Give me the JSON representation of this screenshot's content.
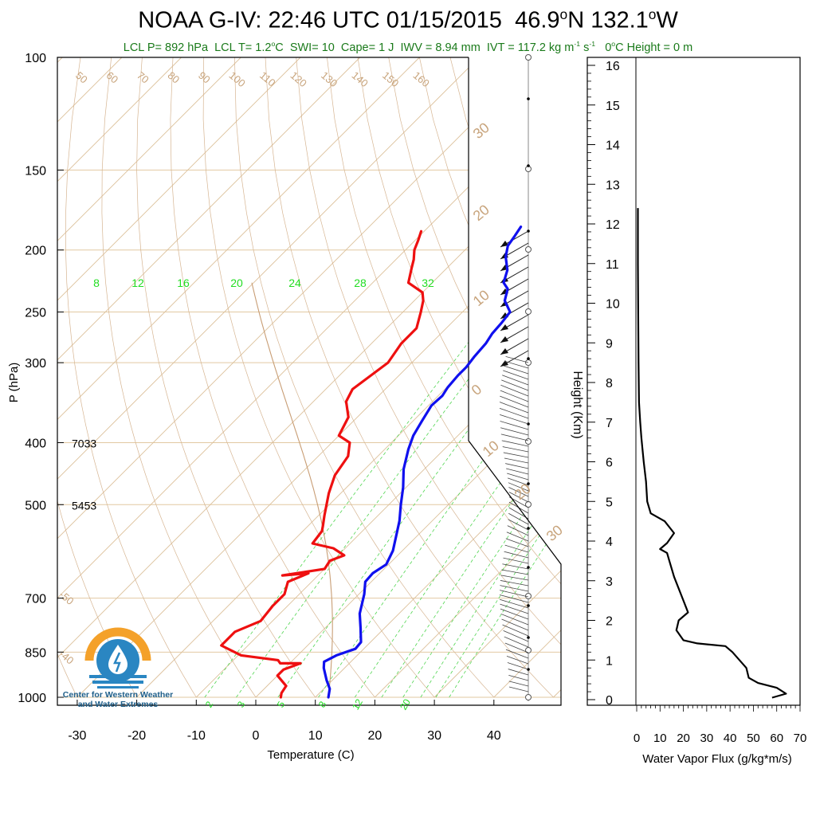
{
  "header": {
    "station": "NOAA G-IV",
    "time": "22:46 UTC 01/15/2015",
    "lat": "46.9",
    "lon": "132.1",
    "indices": {
      "lcl_p": "LCL P= 892 hPa",
      "lcl_t_prefix": "LCL T= 1.2",
      "swi": "SWI= 10",
      "cape": "Cape= 1 J",
      "iwv": "IWV = 8.94 mm",
      "ivt_prefix": "IVT = 117.2 kg m",
      "zero_height": "C Height = 0 m"
    }
  },
  "logo": {
    "line1": "Center for Western Weather",
    "line2": "and Water Extremes"
  },
  "chart_data": [
    {
      "type": "line",
      "name": "skew-t",
      "xlabel": "Temperature (C)",
      "ylabel": "P (hPa)",
      "xlim": [
        -34,
        52
      ],
      "ylim": [
        1000,
        100
      ],
      "yscale": "log",
      "x_ticks": [
        -30,
        -20,
        -10,
        0,
        10,
        20,
        30,
        40
      ],
      "y_ticks": [
        100,
        150,
        200,
        250,
        300,
        400,
        500,
        700,
        850,
        1000
      ],
      "height_annotations": [
        {
          "p": 400,
          "text": "7033"
        },
        {
          "p": 500,
          "text": "5453"
        }
      ],
      "isotherm_labels": [
        -50,
        -40,
        -30,
        -20,
        -10,
        0,
        10,
        20,
        30
      ],
      "top_isotherm_labels": [
        50,
        60,
        70,
        80,
        90,
        100,
        110,
        120,
        130,
        140,
        150,
        160
      ],
      "mixing_ratio_labels_top": [
        8,
        12,
        16,
        20,
        24,
        28,
        32
      ],
      "mixing_ratio_labels_bottom": [
        2,
        3,
        5,
        8,
        12,
        20
      ],
      "temperature": {
        "color": "#1010ee",
        "points": [
          [
            12.2,
            1000
          ],
          [
            11,
            970
          ],
          [
            9,
            940
          ],
          [
            6.5,
            900
          ],
          [
            5.5,
            880
          ],
          [
            6.5,
            860
          ],
          [
            8.6,
            840
          ],
          [
            8.4,
            820
          ],
          [
            6.0,
            780
          ],
          [
            3.4,
            740
          ],
          [
            0.9,
            690
          ],
          [
            -1,
            660
          ],
          [
            -1.2,
            640
          ],
          [
            -0.4,
            620
          ],
          [
            -1.6,
            590
          ],
          [
            -3.5,
            560
          ],
          [
            -5.5,
            530
          ],
          [
            -8,
            500
          ],
          [
            -10.5,
            470
          ],
          [
            -13.5,
            440
          ],
          [
            -16,
            410
          ],
          [
            -17.5,
            390
          ],
          [
            -18.5,
            370
          ],
          [
            -19.5,
            350
          ],
          [
            -19.3,
            338
          ],
          [
            -19.8,
            328
          ],
          [
            -20.1,
            314
          ],
          [
            -20.1,
            305
          ],
          [
            -20.5,
            294
          ],
          [
            -20.8,
            280
          ],
          [
            -21.4,
            270
          ],
          [
            -21.6,
            260
          ],
          [
            -22,
            250
          ],
          [
            -24.8,
            240
          ],
          [
            -26.3,
            230
          ],
          [
            -28,
            225
          ],
          [
            -29.5,
            215
          ],
          [
            -32,
            205
          ],
          [
            -33.5,
            197
          ],
          [
            -34,
            190
          ],
          [
            -34.5,
            184
          ]
        ]
      },
      "dewpoint": {
        "color": "#ee1010",
        "points": [
          [
            4.2,
            1000
          ],
          [
            3.6,
            985
          ],
          [
            3.2,
            960
          ],
          [
            0,
            925
          ],
          [
            0,
            905
          ],
          [
            1.8,
            885
          ],
          [
            -1.6,
            885
          ],
          [
            -2.5,
            875
          ],
          [
            -9.5,
            860
          ],
          [
            -14.5,
            830
          ],
          [
            -14.5,
            790
          ],
          [
            -12,
            760
          ],
          [
            -12.5,
            720
          ],
          [
            -12.5,
            690
          ],
          [
            -14,
            660
          ],
          [
            -12,
            640
          ],
          [
            -16,
            645
          ],
          [
            -10,
            630
          ],
          [
            -10.5,
            612
          ],
          [
            -9,
            600
          ],
          [
            -12,
            585
          ],
          [
            -16.3,
            575
          ],
          [
            -16.8,
            550
          ],
          [
            -17.5,
            540
          ],
          [
            -19,
            520
          ],
          [
            -22,
            480
          ],
          [
            -24,
            450
          ],
          [
            -25,
            420
          ],
          [
            -27,
            400
          ],
          [
            -30,
            390
          ],
          [
            -31.5,
            365
          ],
          [
            -34.5,
            345
          ],
          [
            -35.5,
            330
          ],
          [
            -34,
            300
          ],
          [
            -35,
            280
          ],
          [
            -35,
            265
          ],
          [
            -37,
            250
          ],
          [
            -38.5,
            240
          ],
          [
            -40,
            233
          ],
          [
            -44,
            225
          ],
          [
            -46,
            213
          ],
          [
            -47,
            207
          ],
          [
            -48.5,
            200
          ],
          [
            -49.5,
            193
          ],
          [
            -50.5,
            187
          ]
        ]
      }
    },
    {
      "type": "line",
      "name": "water-vapor-flux",
      "xlabel": "Water Vapor Flux (g/kg*m/s)",
      "ylabel": "Height (Km)",
      "xlim": [
        0,
        70
      ],
      "ylim": [
        0,
        16.5
      ],
      "x_ticks": [
        0,
        10,
        20,
        30,
        40,
        50,
        60,
        70
      ],
      "y_ticks": [
        0,
        1,
        2,
        3,
        4,
        5,
        6,
        7,
        8,
        9,
        10,
        11,
        12,
        13,
        14,
        15,
        16
      ],
      "points": [
        [
          58,
          0.05
        ],
        [
          64,
          0.15
        ],
        [
          60,
          0.3
        ],
        [
          52,
          0.42
        ],
        [
          48,
          0.55
        ],
        [
          47,
          0.8
        ],
        [
          44,
          1.0
        ],
        [
          41,
          1.2
        ],
        [
          38,
          1.35
        ],
        [
          26,
          1.42
        ],
        [
          20,
          1.5
        ],
        [
          17,
          1.75
        ],
        [
          18,
          2.0
        ],
        [
          22,
          2.2
        ],
        [
          20,
          2.5
        ],
        [
          16,
          3.1
        ],
        [
          14,
          3.5
        ],
        [
          13,
          3.7
        ],
        [
          10,
          3.8
        ],
        [
          13,
          3.95
        ],
        [
          16,
          4.2
        ],
        [
          12,
          4.5
        ],
        [
          6,
          4.7
        ],
        [
          4.5,
          5.0
        ],
        [
          4,
          5.5
        ],
        [
          3,
          6.0
        ],
        [
          2,
          6.6
        ],
        [
          1.5,
          7.0
        ],
        [
          1.0,
          7.5
        ],
        [
          0.8,
          8.5
        ],
        [
          0.6,
          10
        ],
        [
          0.5,
          11
        ],
        [
          0.5,
          12.4
        ]
      ]
    }
  ]
}
